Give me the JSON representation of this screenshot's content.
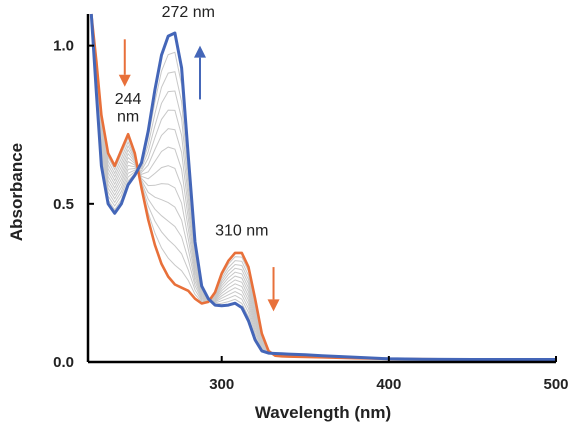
{
  "chart_data": {
    "type": "line",
    "title": "",
    "xlabel": "Wavelength (nm)",
    "ylabel": "Absorbance",
    "xlim": [
      220,
      500
    ],
    "ylim": [
      0,
      1.1
    ],
    "x_ticks": [
      {
        "value": 300,
        "label": "300"
      },
      {
        "value": 400,
        "label": "400"
      },
      {
        "value": 500,
        "label": "500"
      }
    ],
    "y_ticks": [
      {
        "value": 0.0,
        "label": "0.0"
      },
      {
        "value": 0.5,
        "label": "0.5"
      },
      {
        "value": 1.0,
        "label": "1.0"
      }
    ],
    "grid": false,
    "legend": "none",
    "colors": {
      "initial": "#E8703A",
      "final": "#4466B8",
      "intermediate": "#C8C8C8"
    },
    "intermediate_spectra_count": 12,
    "series": [
      {
        "role": "initial",
        "x": [
          222,
          225,
          228,
          232,
          236,
          240,
          244,
          248,
          252,
          256,
          260,
          264,
          268,
          272,
          276,
          280,
          284,
          288,
          292,
          296,
          300,
          304,
          308,
          312,
          316,
          320,
          324,
          328,
          332,
          336,
          340,
          350,
          360,
          380,
          400,
          420,
          450,
          480,
          500
        ],
        "y": [
          1.1,
          0.95,
          0.78,
          0.66,
          0.62,
          0.67,
          0.72,
          0.66,
          0.55,
          0.45,
          0.37,
          0.31,
          0.27,
          0.245,
          0.235,
          0.225,
          0.2,
          0.185,
          0.19,
          0.22,
          0.28,
          0.32,
          0.345,
          0.345,
          0.3,
          0.2,
          0.09,
          0.035,
          0.02,
          0.018,
          0.017,
          0.016,
          0.015,
          0.012,
          0.01,
          0.009,
          0.008,
          0.008,
          0.008
        ]
      },
      {
        "role": "final",
        "x": [
          222,
          225,
          228,
          232,
          236,
          240,
          244,
          248,
          252,
          256,
          260,
          264,
          268,
          272,
          276,
          280,
          284,
          288,
          292,
          296,
          300,
          304,
          308,
          312,
          316,
          320,
          324,
          328,
          332,
          336,
          340,
          350,
          360,
          380,
          400,
          420,
          450,
          480,
          500
        ],
        "y": [
          1.1,
          0.85,
          0.62,
          0.5,
          0.47,
          0.5,
          0.56,
          0.59,
          0.63,
          0.73,
          0.86,
          0.97,
          1.03,
          1.04,
          0.93,
          0.65,
          0.38,
          0.24,
          0.2,
          0.18,
          0.178,
          0.18,
          0.186,
          0.172,
          0.13,
          0.07,
          0.035,
          0.028,
          0.027,
          0.026,
          0.025,
          0.023,
          0.02,
          0.015,
          0.01,
          0.009,
          0.008,
          0.008,
          0.008
        ]
      }
    ],
    "annotations": [
      {
        "text": "272 nm",
        "x": 280,
        "y": 1.09
      },
      {
        "text": "244",
        "x": 244,
        "y": 0.815
      },
      {
        "text": "nm",
        "x": 244,
        "y": 0.76
      },
      {
        "text": "310 nm",
        "x": 312,
        "y": 0.4
      }
    ],
    "arrows": [
      {
        "direction": "down",
        "color": "orange",
        "x": 242,
        "y_from": 1.02,
        "y_to": 0.87
      },
      {
        "direction": "up",
        "color": "blue",
        "x": 287,
        "y_from": 0.83,
        "y_to": 1.0
      },
      {
        "direction": "down",
        "color": "orange",
        "x": 331,
        "y_from": 0.3,
        "y_to": 0.16
      }
    ]
  }
}
